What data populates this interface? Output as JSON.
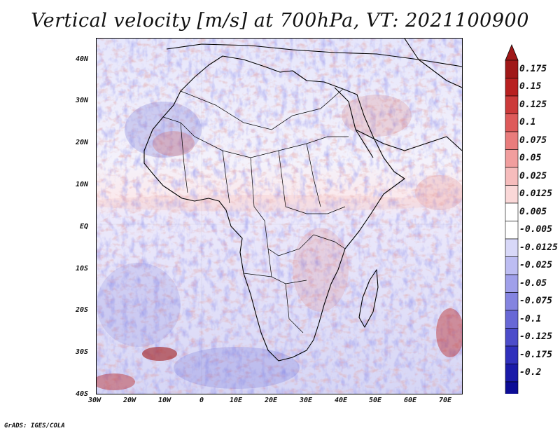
{
  "title": "Vertical velocity [m/s] at 700hPa, VT: 2021100900",
  "footer": "GrADS: IGES/COLA",
  "lat_labels": [
    "40N",
    "30N",
    "20N",
    "10N",
    "EQ",
    "10S",
    "20S",
    "30S",
    "40S"
  ],
  "lon_labels": [
    "30W",
    "20W",
    "10W",
    "0",
    "10E",
    "20E",
    "30E",
    "40E",
    "50E",
    "60E",
    "70E"
  ],
  "colorbar": {
    "labels": [
      "0.175",
      "0.15",
      "0.125",
      "0.1",
      "0.075",
      "0.05",
      "0.025",
      "0.0125",
      "0.005",
      "-0.005",
      "-0.0125",
      "-0.025",
      "-0.05",
      "-0.075",
      "-0.1",
      "-0.125",
      "-0.175",
      "-0.2"
    ],
    "colors": [
      "#a01818",
      "#b82020",
      "#cc3a3a",
      "#de5a5a",
      "#e97c7c",
      "#f19e9e",
      "#f6bcbc",
      "#fad8d8",
      "#ffffff",
      "#ffffff",
      "#d8d8f8",
      "#bdbdf2",
      "#a0a0ea",
      "#8484e0",
      "#6868d6",
      "#4c4cca",
      "#3030bc",
      "#1a1aa8",
      "#0c0c96"
    ]
  }
}
